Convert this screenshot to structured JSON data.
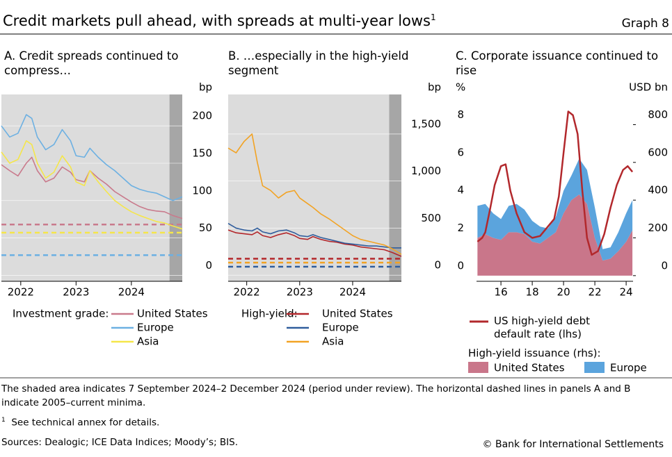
{
  "header": {
    "title": "Credit markets pull ahead, with spreads at multi-year lows",
    "title_note": "1",
    "graph_label": "Graph 8"
  },
  "chart_data": [
    {
      "type": "line",
      "title": "A. Credit spreads continued to compress…",
      "y_unit": "bp",
      "legend_title": "Investment grade:",
      "xlim": [
        2021.65,
        2024.92
      ],
      "xticks": [
        2022,
        2023,
        2024
      ],
      "ylim": [
        -8,
        242
      ],
      "yticks": [
        0,
        50,
        100,
        150,
        200
      ],
      "grid": true,
      "shaded_range": [
        2024.69,
        2024.92
      ],
      "series": [
        {
          "name": "United States",
          "color": "#c97a8c",
          "minimum": 68,
          "x": [
            2021.65,
            2021.8,
            2021.95,
            2022.1,
            2022.2,
            2022.3,
            2022.45,
            2022.6,
            2022.75,
            2022.9,
            2023.0,
            2023.15,
            2023.25,
            2023.4,
            2023.55,
            2023.7,
            2023.85,
            2024.0,
            2024.15,
            2024.3,
            2024.45,
            2024.6,
            2024.75,
            2024.92
          ],
          "values": [
            148,
            140,
            133,
            150,
            158,
            140,
            125,
            130,
            145,
            138,
            128,
            125,
            140,
            130,
            122,
            112,
            105,
            98,
            92,
            88,
            86,
            85,
            80,
            76
          ]
        },
        {
          "name": "Europe",
          "color": "#6cb0e2",
          "minimum": 27,
          "x": [
            2021.65,
            2021.8,
            2021.95,
            2022.1,
            2022.2,
            2022.3,
            2022.45,
            2022.6,
            2022.75,
            2022.9,
            2023.0,
            2023.15,
            2023.25,
            2023.4,
            2023.55,
            2023.7,
            2023.85,
            2024.0,
            2024.15,
            2024.3,
            2024.45,
            2024.6,
            2024.75,
            2024.92
          ],
          "values": [
            200,
            185,
            190,
            215,
            210,
            185,
            168,
            175,
            195,
            180,
            160,
            158,
            170,
            158,
            148,
            140,
            130,
            120,
            115,
            112,
            110,
            105,
            100,
            105
          ]
        },
        {
          "name": "Asia",
          "color": "#f5e64a",
          "minimum": 57,
          "x": [
            2021.65,
            2021.8,
            2021.95,
            2022.1,
            2022.2,
            2022.3,
            2022.45,
            2022.6,
            2022.75,
            2022.9,
            2023.0,
            2023.15,
            2023.25,
            2023.4,
            2023.55,
            2023.7,
            2023.85,
            2024.0,
            2024.15,
            2024.3,
            2024.45,
            2024.6,
            2024.75,
            2024.92
          ],
          "values": [
            165,
            150,
            155,
            180,
            175,
            150,
            130,
            138,
            160,
            145,
            125,
            120,
            140,
            125,
            112,
            100,
            92,
            85,
            80,
            76,
            72,
            70,
            66,
            62
          ]
        }
      ]
    },
    {
      "type": "line",
      "title": "B. …especially in the high-yield segment",
      "y_unit": "bp",
      "legend_title": "High-yield:",
      "xlim": [
        2021.65,
        2024.92
      ],
      "xticks": [
        2022,
        2023,
        2024
      ],
      "ylim": [
        -65,
        1920
      ],
      "yticks": [
        0,
        500,
        {
          "value": 1000,
          "label": "1,000"
        },
        {
          "value": 1500,
          "label": "1,500"
        }
      ],
      "grid": true,
      "shaded_range": [
        2024.69,
        2024.92
      ],
      "series": [
        {
          "name": "United States",
          "color": "#b3262a",
          "minimum": 175,
          "x": [
            2021.65,
            2021.8,
            2021.95,
            2022.1,
            2022.2,
            2022.3,
            2022.45,
            2022.6,
            2022.75,
            2022.9,
            2023.0,
            2023.15,
            2023.25,
            2023.4,
            2023.55,
            2023.7,
            2023.85,
            2024.0,
            2024.15,
            2024.3,
            2024.45,
            2024.6,
            2024.75,
            2024.92
          ],
          "values": [
            480,
            450,
            440,
            430,
            460,
            420,
            400,
            430,
            450,
            420,
            390,
            380,
            410,
            380,
            360,
            350,
            330,
            320,
            300,
            290,
            280,
            270,
            240,
            200
          ]
        },
        {
          "name": "Europe",
          "color": "#2f5d9c",
          "minimum": 90,
          "x": [
            2021.65,
            2021.8,
            2021.95,
            2022.1,
            2022.2,
            2022.3,
            2022.45,
            2022.6,
            2022.75,
            2022.9,
            2023.0,
            2023.15,
            2023.25,
            2023.4,
            2023.55,
            2023.7,
            2023.85,
            2024.0,
            2024.15,
            2024.3,
            2024.45,
            2024.6,
            2024.75,
            2024.92
          ],
          "values": [
            550,
            500,
            480,
            470,
            500,
            460,
            440,
            470,
            480,
            450,
            420,
            410,
            430,
            400,
            380,
            360,
            340,
            330,
            320,
            310,
            310,
            300,
            290,
            290
          ]
        },
        {
          "name": "Asia",
          "color": "#f2a324",
          "minimum": 133,
          "x": [
            2021.65,
            2021.8,
            2021.95,
            2022.1,
            2022.2,
            2022.3,
            2022.45,
            2022.6,
            2022.75,
            2022.9,
            2023.0,
            2023.15,
            2023.25,
            2023.4,
            2023.55,
            2023.7,
            2023.85,
            2024.0,
            2024.15,
            2024.3,
            2024.45,
            2024.6,
            2024.75,
            2024.92
          ],
          "values": [
            1350,
            1300,
            1420,
            1500,
            1200,
            950,
            900,
            820,
            880,
            900,
            820,
            760,
            720,
            650,
            600,
            540,
            480,
            420,
            380,
            360,
            340,
            320,
            280,
            220
          ]
        }
      ]
    },
    {
      "type": "combo",
      "title": "C. Corporate issuance continued to rise",
      "y_unit": "%",
      "y2_unit": "USD bn",
      "legend_title": "High-yield issuance (rhs):",
      "xlim": [
        2014.44,
        2024.44
      ],
      "xticks": [
        {
          "value": 2016,
          "label": "16"
        },
        {
          "value": 2018,
          "label": "18"
        },
        {
          "value": 2020,
          "label": "20"
        },
        {
          "value": 2022,
          "label": "22"
        },
        {
          "value": 2024,
          "label": "24"
        }
      ],
      "ylim": [
        -0.3,
        9.6
      ],
      "yticks": [
        0,
        2,
        4,
        6,
        8
      ],
      "y2lim": [
        -30,
        960
      ],
      "y2ticks": [
        0,
        200,
        400,
        600,
        800
      ],
      "series": [
        {
          "name": "United States",
          "type": "area",
          "axis": "y2",
          "color": "#c9768a",
          "x": [
            2014.5,
            2015,
            2015.5,
            2016,
            2016.5,
            2017,
            2017.5,
            2018,
            2018.5,
            2019,
            2019.5,
            2020,
            2020.5,
            2021,
            2021.5,
            2022,
            2022.5,
            2023,
            2023.5,
            2024,
            2024.4
          ],
          "values": [
            200,
            220,
            200,
            190,
            230,
            230,
            220,
            180,
            170,
            200,
            230,
            330,
            400,
            430,
            380,
            200,
            80,
            90,
            130,
            180,
            240
          ]
        },
        {
          "name": "Europe",
          "type": "area",
          "axis": "y2",
          "color": "#5ba4dd",
          "x": [
            2014.5,
            2015,
            2015.5,
            2016,
            2016.5,
            2017,
            2017.5,
            2018,
            2018.5,
            2019,
            2019.5,
            2020,
            2020.5,
            2021,
            2021.5,
            2022,
            2022.5,
            2023,
            2023.5,
            2024,
            2024.4
          ],
          "values": [
            170,
            160,
            130,
            110,
            140,
            150,
            130,
            110,
            90,
            50,
            80,
            120,
            130,
            190,
            180,
            160,
            60,
            60,
            100,
            150,
            160
          ]
        },
        {
          "name": "US high-yield debt default rate (lhs)",
          "type": "line",
          "color": "#b2282c",
          "x": [
            2014.5,
            2014.8,
            2015,
            2015.3,
            2015.6,
            2016,
            2016.3,
            2016.6,
            2017,
            2017.5,
            2018,
            2018.5,
            2019,
            2019.4,
            2019.7,
            2020,
            2020.3,
            2020.6,
            2020.9,
            2021.2,
            2021.5,
            2021.8,
            2022.2,
            2022.6,
            2023,
            2023.4,
            2023.8,
            2024.1,
            2024.4
          ],
          "values": [
            1.8,
            2.0,
            2.3,
            3.5,
            4.8,
            5.8,
            5.9,
            4.5,
            3.3,
            2.3,
            2.0,
            2.1,
            2.6,
            3.0,
            4.2,
            6.5,
            8.7,
            8.5,
            7.5,
            4.5,
            2.0,
            1.1,
            1.3,
            2.2,
            3.6,
            4.8,
            5.6,
            5.8,
            5.5
          ]
        }
      ]
    }
  ],
  "footer": {
    "note": "The shaded area indicates 7 September 2024–2 December 2024 (period under review). The horizontal dashed lines in panels A and B indicate 2005–current minima.",
    "footnote_mark": "1",
    "footnote": "See technical annex for details.",
    "sources": "Sources: Dealogic; ICE Data Indices; Moody’s; BIS.",
    "copyright": "© Bank for International Settlements"
  }
}
